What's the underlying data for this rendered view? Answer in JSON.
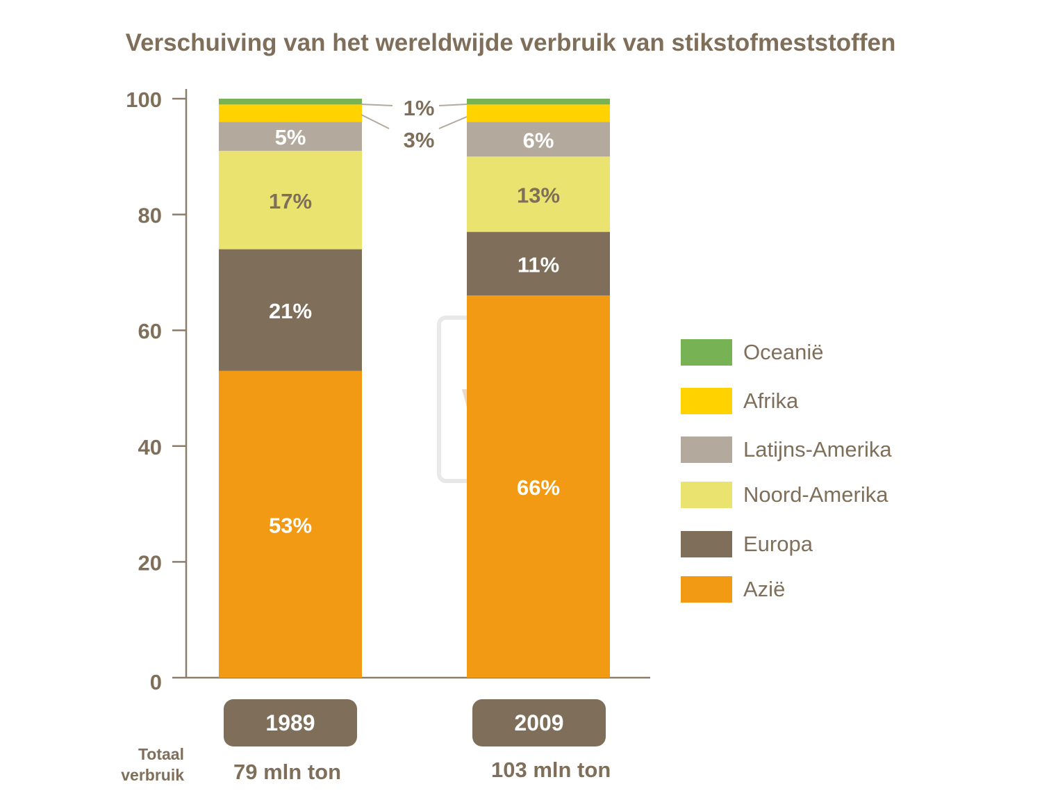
{
  "chart_data": {
    "type": "bar",
    "stacked": true,
    "title": "Verschuiving van het wereldwijde verbruik van stikstofmeststoffen",
    "categories": [
      "1989",
      "2009"
    ],
    "ylim": [
      0,
      100
    ],
    "yticks": [
      0,
      20,
      40,
      60,
      80,
      100
    ],
    "grid": false,
    "legend_position": "right",
    "series": [
      {
        "name": "Azië",
        "color": "#f39a14",
        "values": [
          53,
          66
        ],
        "labels": [
          "53%",
          "66%"
        ],
        "label_color": "#ffffff"
      },
      {
        "name": "Europa",
        "color": "#7f6f5a",
        "values": [
          21,
          11
        ],
        "labels": [
          "21%",
          "11%"
        ],
        "label_color": "#ffffff"
      },
      {
        "name": "Noord-Amerika",
        "color": "#ebe370",
        "values": [
          17,
          13
        ],
        "labels": [
          "17%",
          "13%"
        ],
        "label_color": "#7f6f5a"
      },
      {
        "name": "Latijns-Amerika",
        "color": "#b3a99c",
        "values": [
          5,
          6
        ],
        "labels": [
          "5%",
          "6%"
        ],
        "label_color": "#ffffff"
      },
      {
        "name": "Afrika",
        "color": "#ffd200",
        "values": [
          3,
          3
        ],
        "labels": [
          "",
          ""
        ],
        "label_color": "#7f6f5a"
      },
      {
        "name": "Oceanië",
        "color": "#77b255",
        "values": [
          1,
          1
        ],
        "labels": [
          "",
          ""
        ],
        "label_color": "#7f6f5a"
      }
    ],
    "callouts": {
      "oceania": "1%",
      "afrika": "3%"
    },
    "totals": {
      "label": [
        "Totaal",
        "verbruik"
      ],
      "values": [
        "79 mln ton",
        "103 mln ton"
      ]
    },
    "watermark": "YARA"
  }
}
